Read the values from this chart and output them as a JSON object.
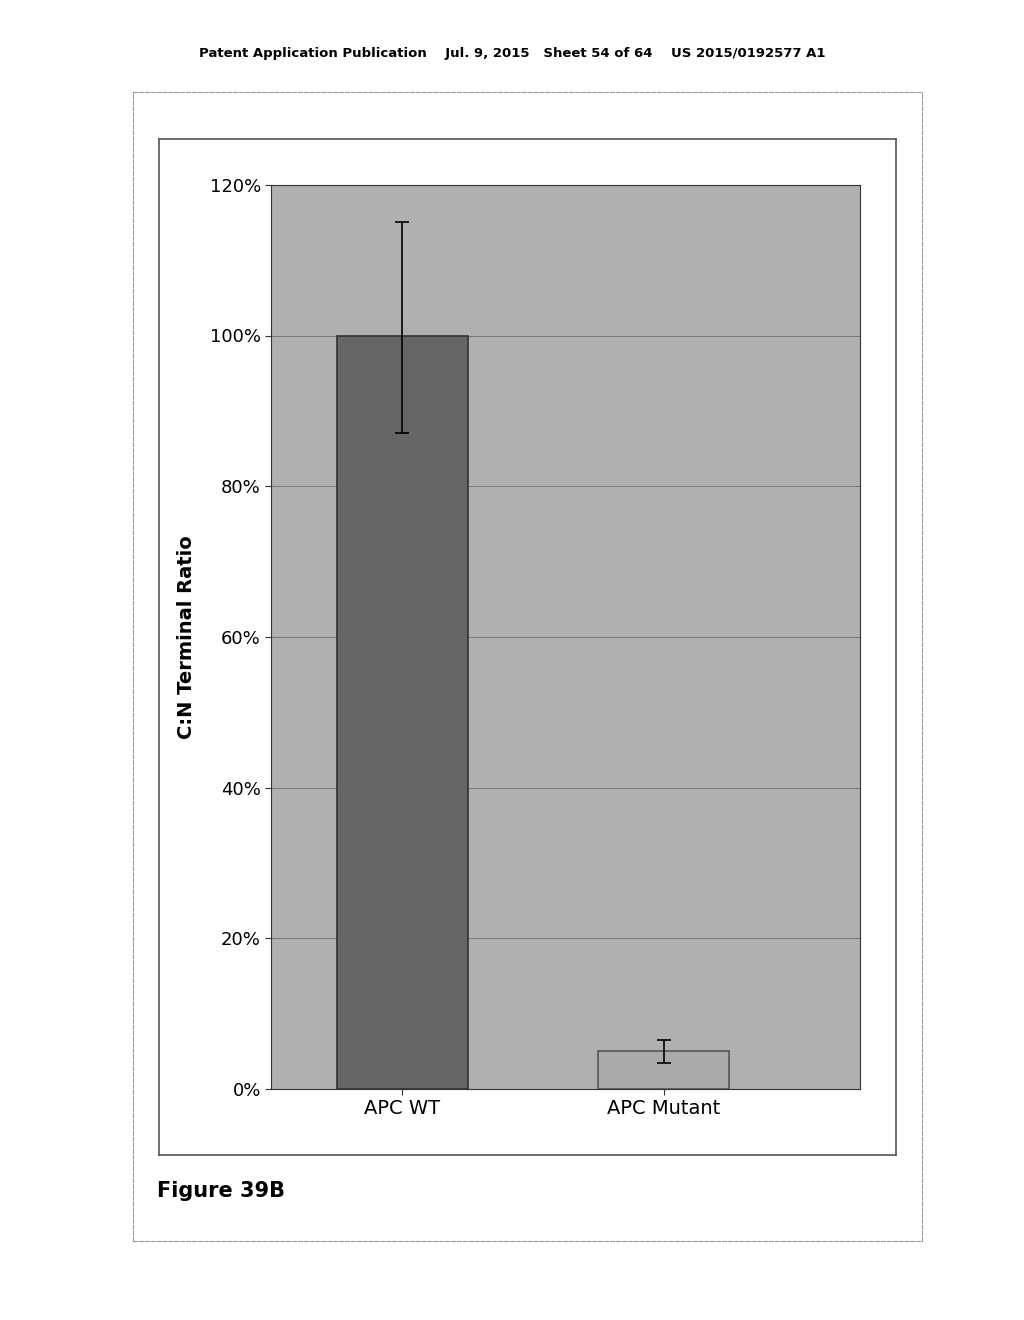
{
  "categories": [
    "APC WT",
    "APC Mutant"
  ],
  "values": [
    100.0,
    5.0
  ],
  "errors_up": [
    15.0,
    1.5
  ],
  "errors_down": [
    13.0,
    1.5
  ],
  "bar_colors": [
    "#666666",
    "#aaaaaa"
  ],
  "bar_edge_colors": [
    "#333333",
    "#555555"
  ],
  "ylabel": "C:N Terminal Ratio",
  "ylim": [
    0,
    120
  ],
  "yticks": [
    0,
    20,
    40,
    60,
    80,
    100,
    120
  ],
  "ytick_labels": [
    "0%",
    "20%",
    "40%",
    "60%",
    "80%",
    "100%",
    "120%"
  ],
  "figure_caption": "Figure 39B",
  "page_bg_color": "#ffffff",
  "outer_frame_bg": "#ffffff",
  "inner_frame_bg": "#ffffff",
  "plot_bg_color": "#b0b0b0",
  "header_text": "Patent Application Publication    Jul. 9, 2015   Sheet 54 of 64    US 2015/0192577 A1",
  "axis_fontsize": 14,
  "tick_fontsize": 13,
  "caption_fontsize": 15,
  "ylabel_fontsize": 14,
  "xtick_fontsize": 14
}
